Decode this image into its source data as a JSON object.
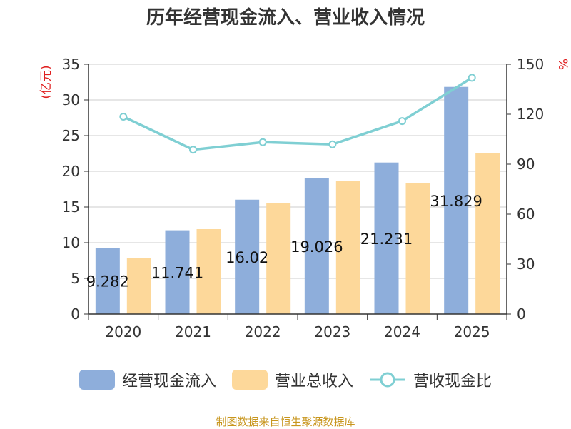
{
  "chart_data": {
    "type": "bar",
    "title": "历年经营现金流入、营业收入情况",
    "categories": [
      "2020",
      "2021",
      "2022",
      "2023",
      "2024",
      "2025"
    ],
    "series": [
      {
        "name": "经营现金流入",
        "type": "bar",
        "axis": "left",
        "color": "#8eaedb",
        "values": [
          9.282,
          11.741,
          16.024,
          19.026,
          21.231,
          31.829
        ],
        "labels": [
          "9.282",
          "11.741",
          "16.02",
          "19.026",
          "21.231",
          "31.829"
        ]
      },
      {
        "name": "营业总收入",
        "type": "bar",
        "axis": "left",
        "color": "#fdd89a",
        "values": [
          7.9,
          11.9,
          15.6,
          18.7,
          18.4,
          22.6
        ]
      },
      {
        "name": "营收现金比",
        "type": "line",
        "axis": "right",
        "color": "#7fcfd3",
        "values": [
          118.5,
          98.7,
          103.2,
          101.9,
          115.9,
          141.9
        ]
      }
    ],
    "y_left": {
      "label": "(亿元)",
      "min": 0,
      "max": 35,
      "ticks": [
        0,
        5,
        10,
        15,
        20,
        25,
        30,
        35
      ]
    },
    "y_right": {
      "label": "%",
      "min": 0,
      "max": 150,
      "ticks": [
        0,
        30,
        60,
        90,
        120,
        150
      ]
    },
    "grid": true,
    "legend_position": "bottom"
  },
  "footer": {
    "source": "制图数据来自恒生聚源数据库"
  }
}
